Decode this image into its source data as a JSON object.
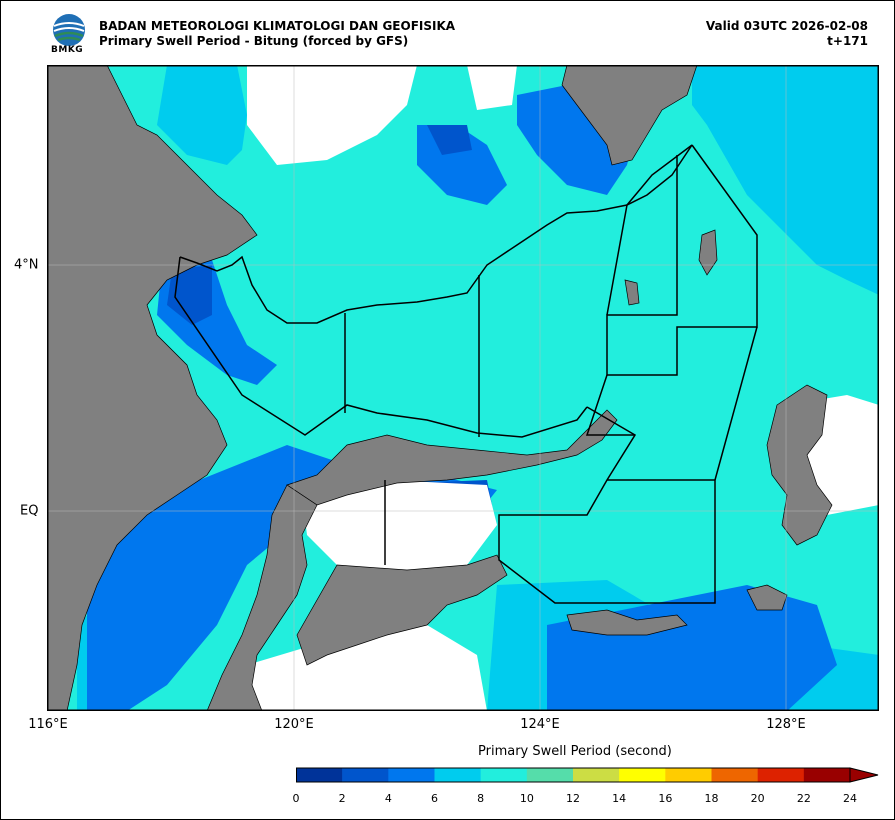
{
  "header": {
    "agency": "BADAN METEOROLOGI KLIMATOLOGI DAN GEOFISIKA",
    "subtitle": "Primary Swell Period - Bitung (forced by GFS)",
    "valid": "Valid 03UTC 2026-02-08",
    "step": "t+171",
    "logo_text": "BMKG"
  },
  "axes": {
    "x_ticks": [
      "116°E",
      "120°E",
      "124°E",
      "128°E"
    ],
    "y_ticks": [
      "4°N",
      "EQ"
    ]
  },
  "colorbar": {
    "title": "Primary Swell Period (second)",
    "ticks": [
      "0",
      "2",
      "4",
      "6",
      "8",
      "10",
      "12",
      "14",
      "16",
      "18",
      "20",
      "22",
      "24"
    ],
    "colors": [
      "#003399",
      "#0055cc",
      "#0077ee",
      "#00ccee",
      "#22eedd",
      "#55ddaa",
      "#ccdd44",
      "#ffff00",
      "#ffcc00",
      "#ee6600",
      "#dd2200",
      "#990000"
    ],
    "extend_color": "#990000"
  },
  "colors": {
    "land": "#808080",
    "no_data": "#ffffff",
    "grid": "#bbbbbb"
  }
}
